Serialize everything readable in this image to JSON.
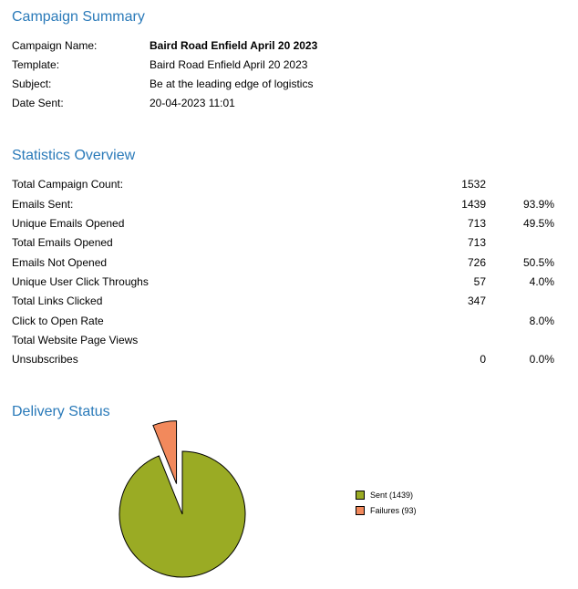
{
  "campaign_summary": {
    "title": "Campaign Summary",
    "rows": [
      {
        "label": "Campaign Name:",
        "value": "Baird Road Enfield April 20 2023"
      },
      {
        "label": "Template:",
        "value": "Baird Road Enfield April 20 2023"
      },
      {
        "label": "Subject:",
        "value": "Be at the leading edge of logistics"
      },
      {
        "label": "Date Sent:",
        "value": "20-04-2023 11:01"
      }
    ]
  },
  "statistics_overview": {
    "title": "Statistics Overview",
    "rows": [
      {
        "label": "Total Campaign Count:",
        "count": "1532",
        "percent": ""
      },
      {
        "label": "Emails Sent:",
        "count": "1439",
        "percent": "93.9%"
      },
      {
        "label": "Unique Emails Opened",
        "count": "713",
        "percent": "49.5%"
      },
      {
        "label": "Total Emails Opened",
        "count": "713",
        "percent": ""
      },
      {
        "label": "Emails Not Opened",
        "count": "726",
        "percent": "50.5%"
      },
      {
        "label": "Unique User Click Throughs",
        "count": "57",
        "percent": "4.0%"
      },
      {
        "label": "Total Links Clicked",
        "count": "347",
        "percent": ""
      },
      {
        "label": "Click to Open Rate",
        "count": "",
        "percent": "8.0%"
      },
      {
        "label": "Total Website Page Views",
        "count": "",
        "percent": ""
      },
      {
        "label": "Unsubscribes",
        "count": "0",
        "percent": "0.0%"
      }
    ]
  },
  "delivery_status": {
    "title": "Delivery Status"
  },
  "chart_data": {
    "type": "pie",
    "title": "",
    "slices": [
      {
        "label": "Sent (1439)",
        "value": 1439,
        "color": "#9aab24"
      },
      {
        "label": "Failures (93)",
        "value": 93,
        "color": "#f2895c",
        "exploded": true
      }
    ],
    "legend_position": "right"
  },
  "colors": {
    "heading": "#2a7ab9",
    "sent": "#9aab24",
    "failures": "#f2895c"
  }
}
